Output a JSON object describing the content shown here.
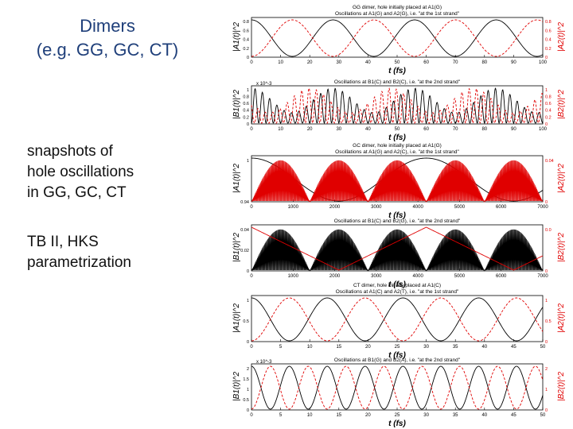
{
  "slide": {
    "title_lines": [
      "Dimers",
      "(e.g. GG, GC, CT)"
    ],
    "bullet1_lines": [
      "snapshots of",
      "hole oscillations",
      "in GG, GC, CT"
    ],
    "bullet2_lines": [
      "TB II, HKS",
      "parametrization"
    ]
  },
  "colors": {
    "title": "#1f3f7a",
    "series_black": "#000000",
    "series_red": "#e00000"
  },
  "chart_data": [
    {
      "type": "line",
      "title": "GG dimer, hole initially placed at A1(G)",
      "subtitle": "Oscillations at A1(G) and A2(G), i.e. \"at the 1st strand\"",
      "xlabel": "t (fs)",
      "ylabel_left": "|A1(t)|^2",
      "ylabel_right": "|A2(t)|^2",
      "xlim": [
        0,
        100
      ],
      "ylim": [
        0,
        1
      ],
      "x_ticks": [
        "0",
        "10",
        "20",
        "30",
        "40",
        "50",
        "60",
        "70",
        "80",
        "90",
        "100"
      ],
      "y_ticks_left": [
        "0",
        "0.2",
        "0.4",
        "0.6",
        "0.8"
      ],
      "y_ticks_right": [
        "0",
        "0.2",
        "0.4",
        "0.6",
        "0.8"
      ],
      "exponent": "",
      "series": [
        {
          "name": "|A1(t)|^2",
          "color": "black",
          "style": "solid",
          "form": "oscillation",
          "period": 28,
          "amplitude": 1,
          "offset": 0,
          "phase": 0
        },
        {
          "name": "|A2(t)|^2",
          "color": "red",
          "style": "dashed",
          "form": "oscillation",
          "period": 28,
          "amplitude": 1,
          "offset": 0,
          "phase": 0.5
        }
      ]
    },
    {
      "type": "line",
      "title": "",
      "subtitle": "Oscillations at B1(C) and B2(C), i.e. \"at the 2nd strand\"",
      "xlabel": "t (fs)",
      "ylabel_left": "|B1(t)|^2",
      "ylabel_right": "|B2(t)|^2",
      "xlim": [
        0,
        100
      ],
      "ylim": [
        0,
        1.2
      ],
      "x_ticks": [
        "0",
        "10",
        "20",
        "30",
        "40",
        "50",
        "60",
        "70",
        "80",
        "90",
        "100"
      ],
      "y_ticks_left": [
        "0",
        "0.2",
        "0.4",
        "0.6",
        "0.8",
        "1"
      ],
      "y_ticks_right": [
        "0",
        "0.2",
        "0.4",
        "0.6",
        "0.8",
        "1"
      ],
      "exponent": "x 10^-3",
      "series": [
        {
          "name": "|B1(t)|^2",
          "color": "black",
          "style": "solid",
          "form": "fast",
          "period": 5,
          "amplitude": 1.2,
          "offset": 0,
          "phase": 0,
          "envelope_period": 28
        },
        {
          "name": "|B2(t)|^2",
          "color": "red",
          "style": "dashed",
          "form": "fast",
          "period": 5,
          "amplitude": 1.2,
          "offset": 0,
          "phase": 0.3,
          "envelope_period": 28
        }
      ]
    },
    {
      "type": "line",
      "title": "GC dimer, hole initially placed at A1(G)",
      "subtitle": "Oscillations at A1(G) and A2(C), i.e. \"at the 1st strand\"",
      "xlabel": "t (fs)",
      "ylabel_left": "|A1(t)|^2",
      "ylabel_right": "|A2(t)|^2",
      "xlim": [
        0,
        7000
      ],
      "ylim": [
        0.94,
        1
      ],
      "x_ticks": [
        "0",
        "1000",
        "2000",
        "3000",
        "4000",
        "5000",
        "6000",
        "7000"
      ],
      "y_ticks_left": [
        "0.94",
        "1"
      ],
      "y_ticks_right": [
        "0",
        "0.04"
      ],
      "exponent": "",
      "series": [
        {
          "name": "|A1(t)|^2",
          "color": "black",
          "style": "solid",
          "form": "envelope",
          "period": 4200,
          "amplitude": 1,
          "offset": 0,
          "phase": 0
        },
        {
          "name": "|A2(t)|^2",
          "color": "red",
          "style": "solid",
          "form": "beat",
          "period": 700,
          "amplitude": 1,
          "offset": 0,
          "phase": 0,
          "envelope_period": 1400
        }
      ]
    },
    {
      "type": "line",
      "title": "",
      "subtitle": "Oscillations at B1(C) and B2(G), i.e. \"at the 2nd strand\"",
      "xlabel": "t (fs)",
      "ylabel_left": "|B1(t)|^2",
      "ylabel_right": "|B2(t)|^2",
      "xlim": [
        0,
        7000
      ],
      "ylim": [
        0,
        0.04
      ],
      "x_ticks": [
        "0",
        "1000",
        "2000",
        "3000",
        "4000",
        "5000",
        "6000",
        "7000"
      ],
      "y_ticks_left": [
        "0",
        "0.02",
        "0.04"
      ],
      "y_ticks_right": [
        "0",
        "0.0"
      ],
      "exponent": "",
      "series": [
        {
          "name": "|B1(t)|^2",
          "color": "black",
          "style": "solid",
          "form": "beat",
          "period": 700,
          "amplitude": 1,
          "offset": 0,
          "phase": 0,
          "envelope_period": 1400
        },
        {
          "name": "|B2(t)|^2",
          "color": "red",
          "style": "solid",
          "form": "triangle",
          "period": 4200,
          "amplitude": 1,
          "offset": 0,
          "phase": 0
        }
      ]
    },
    {
      "type": "line",
      "title": "CT dimer, hole initially placed at A1(C)",
      "subtitle": "Oscillations at A1(C) and A2(T), i.e. \"at the 1st strand\"",
      "xlabel": "t (fs)",
      "ylabel_left": "|A1(t)|^2",
      "ylabel_right": "|A2(t)|^2",
      "xlim": [
        0,
        50
      ],
      "ylim": [
        0,
        1
      ],
      "x_ticks": [
        "0",
        "5",
        "10",
        "15",
        "20",
        "25",
        "30",
        "35",
        "40",
        "45",
        "50"
      ],
      "y_ticks_left": [
        "0",
        "0.5",
        "1"
      ],
      "y_ticks_right": [
        "0",
        "0.5",
        "1"
      ],
      "exponent": "",
      "series": [
        {
          "name": "|A1(t)|^2",
          "color": "black",
          "style": "solid",
          "form": "oscillation",
          "period": 13,
          "amplitude": 1,
          "offset": 0,
          "phase": 0
        },
        {
          "name": "|A2(t)|^2",
          "color": "red",
          "style": "dashed",
          "form": "oscillation",
          "period": 13,
          "amplitude": 1,
          "offset": 0,
          "phase": 0.5
        }
      ]
    },
    {
      "type": "line",
      "title": "",
      "subtitle": "Oscillations at B1(G) and B2(A), i.e. \"at the 2nd strand\"",
      "xlabel": "t (fs)",
      "ylabel_left": "|B1(t)|^2",
      "ylabel_right": "|B2(t)|^2",
      "xlim": [
        0,
        50
      ],
      "ylim": [
        0,
        2
      ],
      "x_ticks": [
        "0",
        "5",
        "10",
        "15",
        "20",
        "25",
        "30",
        "35",
        "40",
        "45",
        "50"
      ],
      "y_ticks_left": [
        "0",
        "0.5",
        "1",
        "1.5",
        "2"
      ],
      "y_ticks_right": [
        "0",
        "1",
        "2"
      ],
      "exponent": "x 10^-3",
      "series": [
        {
          "name": "|B1(t)|^2",
          "color": "black",
          "style": "solid",
          "form": "oscillation",
          "period": 6.5,
          "amplitude": 1,
          "offset": 0,
          "phase": 0
        },
        {
          "name": "|B2(t)|^2",
          "color": "red",
          "style": "dashed",
          "form": "oscillation",
          "period": 6.5,
          "amplitude": 1,
          "offset": 0,
          "phase": 0.5
        }
      ]
    }
  ]
}
